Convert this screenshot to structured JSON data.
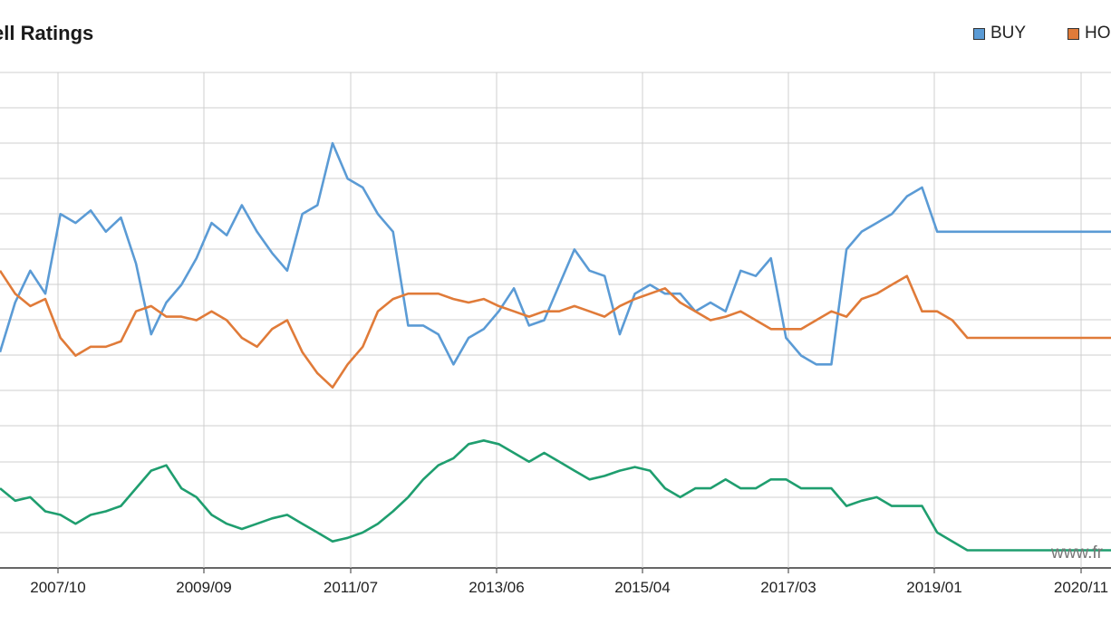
{
  "chart_data": {
    "type": "line",
    "title": "ell Ratings",
    "xlabel": "",
    "ylabel": "",
    "x_tick_labels": [
      "2007/10",
      "2009/09",
      "2011/07",
      "2013/06",
      "2015/04",
      "2017/03",
      "2019/01",
      "2020/11"
    ],
    "grid": true,
    "legend": {
      "placement": "top-right",
      "entries": [
        "BUY",
        "HO"
      ]
    },
    "watermark": "www.fr",
    "series": [
      {
        "name": "BUY",
        "color": "#5b9bd5",
        "x": [
          2006.6,
          2006.8,
          2007.0,
          2007.2,
          2007.4,
          2007.6,
          2007.8,
          2008.0,
          2008.2,
          2008.4,
          2008.6,
          2008.8,
          2009.0,
          2009.2,
          2009.4,
          2009.6,
          2009.8,
          2010.0,
          2010.2,
          2010.4,
          2010.6,
          2010.8,
          2011.0,
          2011.2,
          2011.4,
          2011.6,
          2011.8,
          2012.0,
          2012.2,
          2012.4,
          2012.6,
          2012.8,
          2013.0,
          2013.2,
          2013.4,
          2013.6,
          2013.8,
          2014.0,
          2014.2,
          2014.4,
          2014.6,
          2014.8,
          2015.0,
          2015.2,
          2015.4,
          2015.6,
          2015.8,
          2016.0,
          2016.2,
          2016.4,
          2016.6,
          2016.8,
          2017.0,
          2017.2,
          2017.4,
          2017.6,
          2017.8,
          2018.0,
          2018.2,
          2018.4,
          2018.6,
          2018.8,
          2019.0,
          2019.2,
          2019.4,
          2019.6,
          2019.8,
          2020.0,
          2020.2,
          2020.4,
          2020.6,
          2020.8,
          2021.0,
          2021.2,
          2021.3
        ],
        "values": [
          -1.8,
          1.0,
          2.8,
          1.5,
          6.0,
          5.5,
          6.2,
          5.0,
          5.8,
          3.2,
          -0.8,
          1.0,
          2.0,
          3.5,
          5.5,
          4.8,
          6.5,
          5.0,
          3.8,
          2.8,
          6.0,
          6.5,
          10.0,
          8.0,
          7.5,
          6.0,
          5.0,
          -0.3,
          -0.3,
          -0.8,
          -2.5,
          -1.0,
          -0.5,
          0.5,
          1.8,
          -0.3,
          0.0,
          2.0,
          4.0,
          2.8,
          2.5,
          -0.8,
          1.5,
          2.0,
          1.5,
          1.5,
          0.5,
          1.0,
          0.5,
          2.8,
          2.5,
          3.5,
          -1.0,
          -2.0,
          -2.5,
          -2.5,
          4.0,
          5.0,
          5.5,
          6.0,
          7.0,
          7.5,
          5.0,
          5.0,
          5.0,
          5.0,
          5.0,
          5.0,
          5.0,
          5.0,
          5.0,
          5.0,
          5.0,
          5.0,
          5.0
        ]
      },
      {
        "name": "HO",
        "color": "#e07b39",
        "x": [
          2006.6,
          2006.8,
          2007.0,
          2007.2,
          2007.4,
          2007.6,
          2007.8,
          2008.0,
          2008.2,
          2008.4,
          2008.6,
          2008.8,
          2009.0,
          2009.2,
          2009.4,
          2009.6,
          2009.8,
          2010.0,
          2010.2,
          2010.4,
          2010.6,
          2010.8,
          2011.0,
          2011.2,
          2011.4,
          2011.6,
          2011.8,
          2012.0,
          2012.2,
          2012.4,
          2012.6,
          2012.8,
          2013.0,
          2013.2,
          2013.4,
          2013.6,
          2013.8,
          2014.0,
          2014.2,
          2014.4,
          2014.6,
          2014.8,
          2015.0,
          2015.2,
          2015.4,
          2015.6,
          2015.8,
          2016.0,
          2016.2,
          2016.4,
          2016.6,
          2016.8,
          2017.0,
          2017.2,
          2017.4,
          2017.6,
          2017.8,
          2018.0,
          2018.2,
          2018.4,
          2018.6,
          2018.8,
          2019.0,
          2019.2,
          2019.4,
          2019.6,
          2019.8,
          2020.0,
          2020.2,
          2020.4,
          2020.6,
          2020.8,
          2021.0,
          2021.2,
          2021.3
        ],
        "values": [
          2.8,
          1.5,
          0.8,
          1.2,
          -1.0,
          -2.0,
          -1.5,
          -1.5,
          -1.2,
          0.5,
          0.8,
          0.2,
          0.2,
          0.0,
          0.5,
          0.0,
          -1.0,
          -1.5,
          -0.5,
          0.0,
          -1.8,
          -3.0,
          -3.8,
          -2.5,
          -1.5,
          0.5,
          1.2,
          1.5,
          1.5,
          1.5,
          1.2,
          1.0,
          1.2,
          0.8,
          0.5,
          0.2,
          0.5,
          0.5,
          0.8,
          0.5,
          0.2,
          0.8,
          1.2,
          1.5,
          1.8,
          1.0,
          0.5,
          0.0,
          0.2,
          0.5,
          0.0,
          -0.5,
          -0.5,
          -0.5,
          0.0,
          0.5,
          0.2,
          1.2,
          1.5,
          2.0,
          2.5,
          0.5,
          0.5,
          0.0,
          -1.0,
          -1.0,
          -1.0,
          -1.0,
          -1.0,
          -1.0,
          -1.0,
          -1.0,
          -1.0,
          -1.0,
          -1.0
        ]
      },
      {
        "name": "",
        "color": "#1f9e6f",
        "x": [
          2006.6,
          2006.8,
          2007.0,
          2007.2,
          2007.4,
          2007.6,
          2007.8,
          2008.0,
          2008.2,
          2008.4,
          2008.6,
          2008.8,
          2009.0,
          2009.2,
          2009.4,
          2009.6,
          2009.8,
          2010.0,
          2010.2,
          2010.4,
          2010.6,
          2010.8,
          2011.0,
          2011.2,
          2011.4,
          2011.6,
          2011.8,
          2012.0,
          2012.2,
          2012.4,
          2012.6,
          2012.8,
          2013.0,
          2013.2,
          2013.4,
          2013.6,
          2013.8,
          2014.0,
          2014.2,
          2014.4,
          2014.6,
          2014.8,
          2015.0,
          2015.2,
          2015.4,
          2015.6,
          2015.8,
          2016.0,
          2016.2,
          2016.4,
          2016.6,
          2016.8,
          2017.0,
          2017.2,
          2017.4,
          2017.6,
          2017.8,
          2018.0,
          2018.2,
          2018.4,
          2018.6,
          2018.8,
          2019.0,
          2019.2,
          2019.4,
          2019.6,
          2019.8,
          2020.0,
          2020.2,
          2020.4,
          2020.6,
          2020.8,
          2021.0,
          2021.2,
          2021.3
        ],
        "values": [
          -9.5,
          -10.2,
          -10.0,
          -10.8,
          -11.0,
          -11.5,
          -11.0,
          -10.8,
          -10.5,
          -9.5,
          -8.5,
          -8.2,
          -9.5,
          -10.0,
          -11.0,
          -11.5,
          -11.8,
          -11.5,
          -11.2,
          -11.0,
          -11.5,
          -12.0,
          -12.5,
          -12.3,
          -12.0,
          -11.5,
          -10.8,
          -10.0,
          -9.0,
          -8.2,
          -7.8,
          -7.0,
          -6.8,
          -7.0,
          -7.5,
          -8.0,
          -7.5,
          -8.0,
          -8.5,
          -9.0,
          -8.8,
          -8.5,
          -8.3,
          -8.5,
          -9.5,
          -10.0,
          -9.5,
          -9.5,
          -9.0,
          -9.5,
          -9.5,
          -9.0,
          -9.0,
          -9.5,
          -9.5,
          -9.5,
          -10.5,
          -10.2,
          -10.0,
          -10.5,
          -10.5,
          -10.5,
          -12.0,
          -12.5,
          -13.0,
          -13.0,
          -13.0,
          -13.0,
          -13.0,
          -13.0,
          -13.0,
          -13.0,
          -13.0,
          -13.0,
          -13.0
        ]
      }
    ]
  }
}
